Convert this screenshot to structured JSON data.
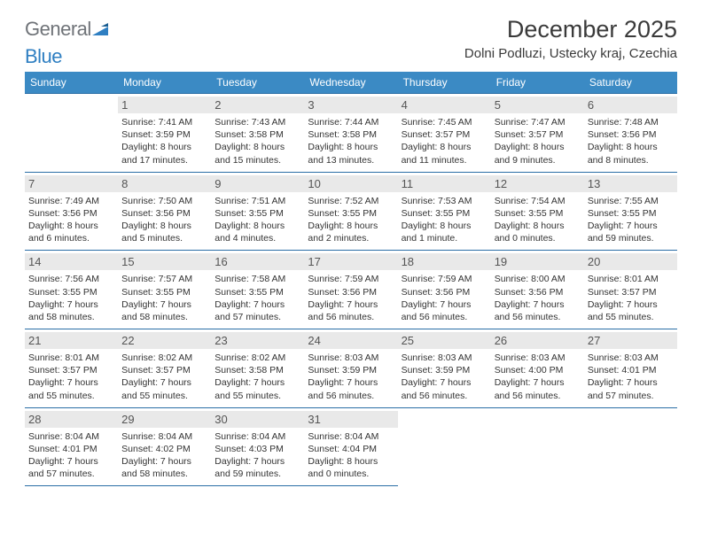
{
  "logo": {
    "gray": "General",
    "blue": "Blue"
  },
  "header": {
    "title": "December 2025",
    "location": "Dolni Podluzi, Ustecky kraj, Czechia"
  },
  "colors": {
    "header_bg": "#3b8ac4",
    "header_text": "#ffffff",
    "daynum_bg": "#e9e9e9",
    "rule": "#2a6ea6",
    "logo_gray": "#6f7378",
    "logo_blue": "#2f7fc2"
  },
  "weekdays": [
    "Sunday",
    "Monday",
    "Tuesday",
    "Wednesday",
    "Thursday",
    "Friday",
    "Saturday"
  ],
  "weeks": [
    [
      null,
      {
        "n": "1",
        "sr": "Sunrise: 7:41 AM",
        "ss": "Sunset: 3:59 PM",
        "d1": "Daylight: 8 hours",
        "d2": "and 17 minutes."
      },
      {
        "n": "2",
        "sr": "Sunrise: 7:43 AM",
        "ss": "Sunset: 3:58 PM",
        "d1": "Daylight: 8 hours",
        "d2": "and 15 minutes."
      },
      {
        "n": "3",
        "sr": "Sunrise: 7:44 AM",
        "ss": "Sunset: 3:58 PM",
        "d1": "Daylight: 8 hours",
        "d2": "and 13 minutes."
      },
      {
        "n": "4",
        "sr": "Sunrise: 7:45 AM",
        "ss": "Sunset: 3:57 PM",
        "d1": "Daylight: 8 hours",
        "d2": "and 11 minutes."
      },
      {
        "n": "5",
        "sr": "Sunrise: 7:47 AM",
        "ss": "Sunset: 3:57 PM",
        "d1": "Daylight: 8 hours",
        "d2": "and 9 minutes."
      },
      {
        "n": "6",
        "sr": "Sunrise: 7:48 AM",
        "ss": "Sunset: 3:56 PM",
        "d1": "Daylight: 8 hours",
        "d2": "and 8 minutes."
      }
    ],
    [
      {
        "n": "7",
        "sr": "Sunrise: 7:49 AM",
        "ss": "Sunset: 3:56 PM",
        "d1": "Daylight: 8 hours",
        "d2": "and 6 minutes."
      },
      {
        "n": "8",
        "sr": "Sunrise: 7:50 AM",
        "ss": "Sunset: 3:56 PM",
        "d1": "Daylight: 8 hours",
        "d2": "and 5 minutes."
      },
      {
        "n": "9",
        "sr": "Sunrise: 7:51 AM",
        "ss": "Sunset: 3:55 PM",
        "d1": "Daylight: 8 hours",
        "d2": "and 4 minutes."
      },
      {
        "n": "10",
        "sr": "Sunrise: 7:52 AM",
        "ss": "Sunset: 3:55 PM",
        "d1": "Daylight: 8 hours",
        "d2": "and 2 minutes."
      },
      {
        "n": "11",
        "sr": "Sunrise: 7:53 AM",
        "ss": "Sunset: 3:55 PM",
        "d1": "Daylight: 8 hours",
        "d2": "and 1 minute."
      },
      {
        "n": "12",
        "sr": "Sunrise: 7:54 AM",
        "ss": "Sunset: 3:55 PM",
        "d1": "Daylight: 8 hours",
        "d2": "and 0 minutes."
      },
      {
        "n": "13",
        "sr": "Sunrise: 7:55 AM",
        "ss": "Sunset: 3:55 PM",
        "d1": "Daylight: 7 hours",
        "d2": "and 59 minutes."
      }
    ],
    [
      {
        "n": "14",
        "sr": "Sunrise: 7:56 AM",
        "ss": "Sunset: 3:55 PM",
        "d1": "Daylight: 7 hours",
        "d2": "and 58 minutes."
      },
      {
        "n": "15",
        "sr": "Sunrise: 7:57 AM",
        "ss": "Sunset: 3:55 PM",
        "d1": "Daylight: 7 hours",
        "d2": "and 58 minutes."
      },
      {
        "n": "16",
        "sr": "Sunrise: 7:58 AM",
        "ss": "Sunset: 3:55 PM",
        "d1": "Daylight: 7 hours",
        "d2": "and 57 minutes."
      },
      {
        "n": "17",
        "sr": "Sunrise: 7:59 AM",
        "ss": "Sunset: 3:56 PM",
        "d1": "Daylight: 7 hours",
        "d2": "and 56 minutes."
      },
      {
        "n": "18",
        "sr": "Sunrise: 7:59 AM",
        "ss": "Sunset: 3:56 PM",
        "d1": "Daylight: 7 hours",
        "d2": "and 56 minutes."
      },
      {
        "n": "19",
        "sr": "Sunrise: 8:00 AM",
        "ss": "Sunset: 3:56 PM",
        "d1": "Daylight: 7 hours",
        "d2": "and 56 minutes."
      },
      {
        "n": "20",
        "sr": "Sunrise: 8:01 AM",
        "ss": "Sunset: 3:57 PM",
        "d1": "Daylight: 7 hours",
        "d2": "and 55 minutes."
      }
    ],
    [
      {
        "n": "21",
        "sr": "Sunrise: 8:01 AM",
        "ss": "Sunset: 3:57 PM",
        "d1": "Daylight: 7 hours",
        "d2": "and 55 minutes."
      },
      {
        "n": "22",
        "sr": "Sunrise: 8:02 AM",
        "ss": "Sunset: 3:57 PM",
        "d1": "Daylight: 7 hours",
        "d2": "and 55 minutes."
      },
      {
        "n": "23",
        "sr": "Sunrise: 8:02 AM",
        "ss": "Sunset: 3:58 PM",
        "d1": "Daylight: 7 hours",
        "d2": "and 55 minutes."
      },
      {
        "n": "24",
        "sr": "Sunrise: 8:03 AM",
        "ss": "Sunset: 3:59 PM",
        "d1": "Daylight: 7 hours",
        "d2": "and 56 minutes."
      },
      {
        "n": "25",
        "sr": "Sunrise: 8:03 AM",
        "ss": "Sunset: 3:59 PM",
        "d1": "Daylight: 7 hours",
        "d2": "and 56 minutes."
      },
      {
        "n": "26",
        "sr": "Sunrise: 8:03 AM",
        "ss": "Sunset: 4:00 PM",
        "d1": "Daylight: 7 hours",
        "d2": "and 56 minutes."
      },
      {
        "n": "27",
        "sr": "Sunrise: 8:03 AM",
        "ss": "Sunset: 4:01 PM",
        "d1": "Daylight: 7 hours",
        "d2": "and 57 minutes."
      }
    ],
    [
      {
        "n": "28",
        "sr": "Sunrise: 8:04 AM",
        "ss": "Sunset: 4:01 PM",
        "d1": "Daylight: 7 hours",
        "d2": "and 57 minutes."
      },
      {
        "n": "29",
        "sr": "Sunrise: 8:04 AM",
        "ss": "Sunset: 4:02 PM",
        "d1": "Daylight: 7 hours",
        "d2": "and 58 minutes."
      },
      {
        "n": "30",
        "sr": "Sunrise: 8:04 AM",
        "ss": "Sunset: 4:03 PM",
        "d1": "Daylight: 7 hours",
        "d2": "and 59 minutes."
      },
      {
        "n": "31",
        "sr": "Sunrise: 8:04 AM",
        "ss": "Sunset: 4:04 PM",
        "d1": "Daylight: 8 hours",
        "d2": "and 0 minutes."
      },
      null,
      null,
      null
    ]
  ]
}
